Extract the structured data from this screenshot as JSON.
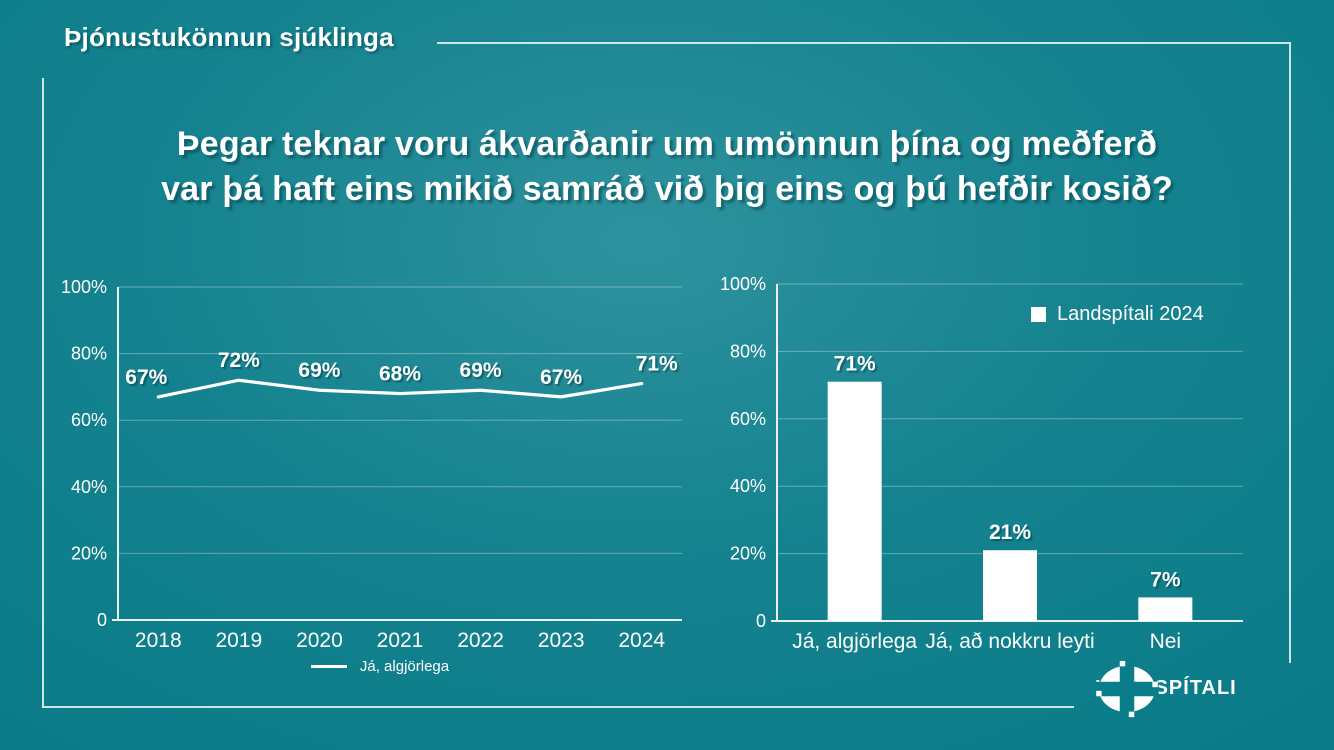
{
  "slide": {
    "header_title": "Þjónustukönnun sjúklinga",
    "question_line1": "Þegar teknar voru ákvarðanir um umönnun þína og meðferð",
    "question_line2": "var þá haft eins mikið samráð við þig eins og þú hefðir kosið?",
    "logo_text": "LANDSPÍTALI"
  },
  "colors": {
    "background_teal": "#0e8190",
    "background_light": "#2e929e",
    "background_dark": "#0a7b88",
    "series_white": "#ffffff",
    "axis_line": "#e9f2f3",
    "gridline": "rgba(255,255,255,0.33)"
  },
  "chart_data": [
    {
      "type": "line",
      "title": "",
      "categories": [
        "2018",
        "2019",
        "2020",
        "2021",
        "2022",
        "2023",
        "2024"
      ],
      "series": [
        {
          "name": "Já, algjörlega",
          "values": [
            67,
            72,
            69,
            68,
            69,
            67,
            71
          ]
        }
      ],
      "ylim": [
        0,
        100
      ],
      "yticks": [
        "100%",
        "80%",
        "60%",
        "40%",
        "20%",
        "0"
      ],
      "ytick_values": [
        100,
        80,
        60,
        40,
        20,
        0
      ],
      "value_suffix": "%",
      "grid": true,
      "legend_position": "bottom"
    },
    {
      "type": "bar",
      "title": "",
      "categories": [
        "Já, algjörlega",
        "Já, að nokkru leyti",
        "Nei"
      ],
      "series": [
        {
          "name": "Landspítali 2024",
          "values": [
            71,
            21,
            7
          ]
        }
      ],
      "ylim": [
        0,
        100
      ],
      "yticks": [
        "100%",
        "80%",
        "60%",
        "40%",
        "20%",
        "0"
      ],
      "ytick_values": [
        100,
        80,
        60,
        40,
        20,
        0
      ],
      "value_suffix": "%",
      "grid": true,
      "legend_position": "top-right"
    }
  ]
}
